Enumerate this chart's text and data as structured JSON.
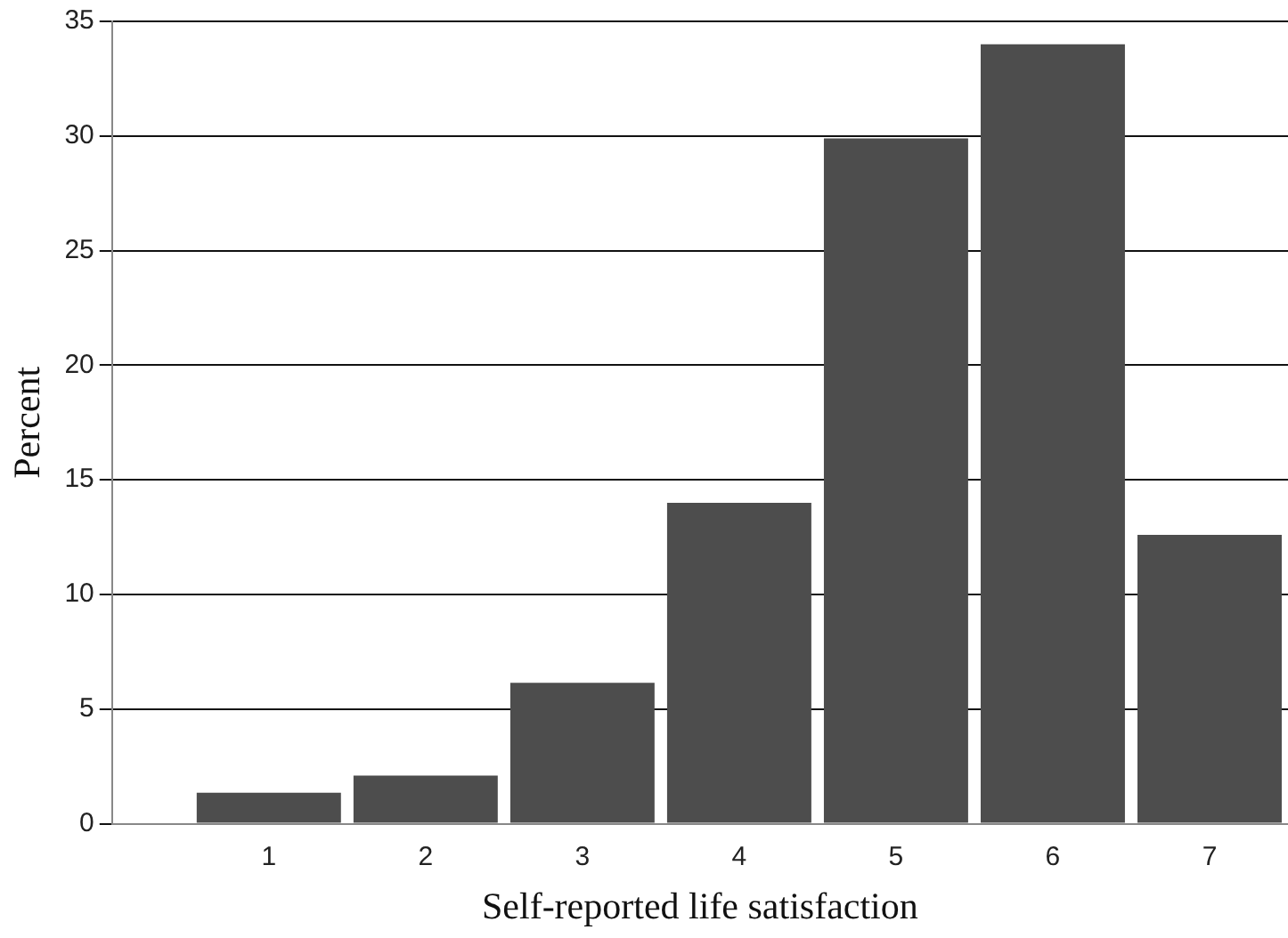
{
  "chart_data": {
    "type": "histogram",
    "xlabel": "Self-reported life satisfaction",
    "ylabel": "Percent",
    "bins": [
      0.5,
      1.5,
      2.5,
      3.5,
      4.5,
      5.5,
      6.5,
      7.5
    ],
    "values": [
      1.35,
      2.1,
      6.15,
      14.0,
      29.9,
      34.0,
      12.6
    ],
    "color": "#4d4d4d",
    "xlim": [
      0,
      7.5
    ],
    "xticks": [
      1,
      2,
      3,
      4,
      5,
      6,
      7
    ],
    "ylim": [
      0,
      35
    ],
    "yticks": [
      0,
      5,
      10,
      15,
      20,
      25,
      30,
      35
    ],
    "grid": "y",
    "legend": false
  }
}
